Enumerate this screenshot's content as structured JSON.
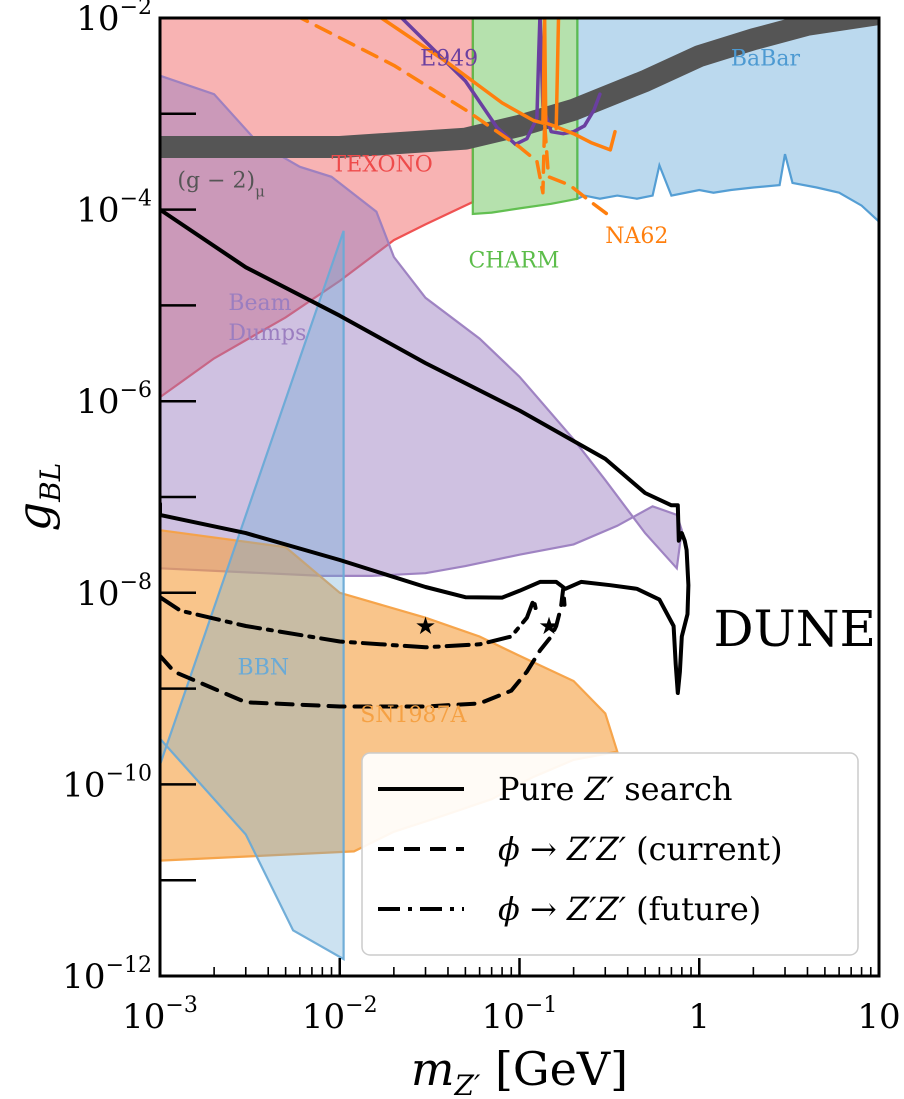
{
  "chart_data": {
    "type": "area",
    "x_scale": "log",
    "y_scale": "log",
    "xlim": [
      0.001,
      10
    ],
    "ylim": [
      1e-12,
      0.01
    ],
    "xlabel": {
      "main": "m",
      "sub": "Z′",
      "unit": "[GeV]"
    },
    "ylabel": {
      "main": "g",
      "sub": "BL"
    },
    "x_ticks": [
      {
        "value": 0.001,
        "base": "10",
        "exp": "−3"
      },
      {
        "value": 0.01,
        "base": "10",
        "exp": "−2"
      },
      {
        "value": 0.1,
        "base": "10",
        "exp": "−1"
      },
      {
        "value": 1,
        "base": "1",
        "exp": ""
      },
      {
        "value": 10,
        "base": "10",
        "exp": ""
      }
    ],
    "y_ticks": [
      {
        "value": 0.01,
        "base": "10",
        "exp": "−2"
      },
      {
        "value": 0.0001,
        "base": "10",
        "exp": "−4"
      },
      {
        "value": 1e-06,
        "base": "10",
        "exp": "−6"
      },
      {
        "value": 1e-08,
        "base": "10",
        "exp": "−8"
      },
      {
        "value": 1e-10,
        "base": "10",
        "exp": "−10"
      },
      {
        "value": 1e-12,
        "base": "10",
        "exp": "−12"
      }
    ],
    "regions": [
      {
        "name": "TEXONO",
        "color": "#ee4b4b",
        "alpha": 0.42,
        "label": {
          "text": "TEXONO",
          "x": 0.009,
          "y": 0.00025
        },
        "points": [
          [
            0.001,
            0.01
          ],
          [
            0.055,
            0.01
          ],
          [
            0.055,
            0.00012
          ],
          [
            0.03,
            7e-05
          ],
          [
            0.02,
            4.8e-05
          ],
          [
            0.01,
            1.8e-05
          ],
          [
            0.005,
            7.5e-06
          ],
          [
            0.002,
            2.8e-06
          ],
          [
            0.001,
            1.1e-06
          ]
        ]
      },
      {
        "name": "BaBar",
        "color": "#4d9ad2",
        "alpha": 0.38,
        "label": {
          "text": "BaBar",
          "x": 1.5,
          "y": 0.0032
        },
        "points": [
          [
            0.21,
            0.01
          ],
          [
            10,
            0.01
          ],
          [
            10,
            7.5e-05
          ],
          [
            8,
            0.00011
          ],
          [
            6,
            0.00015
          ],
          [
            4.5,
            0.00017
          ],
          [
            3.3,
            0.00019
          ],
          [
            3,
            0.00038
          ],
          [
            2.8,
            0.00018
          ],
          [
            2,
            0.00017
          ],
          [
            1.5,
            0.00016
          ],
          [
            1.2,
            0.00015
          ],
          [
            1,
            0.00016
          ],
          [
            0.7,
            0.00014
          ],
          [
            0.6,
            0.00029
          ],
          [
            0.55,
            0.00014
          ],
          [
            0.45,
            0.00013
          ],
          [
            0.35,
            0.00014
          ],
          [
            0.28,
            0.00013
          ],
          [
            0.23,
            0.00014
          ],
          [
            0.21,
            0.00013
          ]
        ]
      },
      {
        "name": "CHARM",
        "color": "#5cbd4a",
        "alpha": 0.45,
        "label": {
          "text": "CHARM",
          "x": 0.052,
          "y": 2.5e-05
        },
        "points": [
          [
            0.055,
            0.01
          ],
          [
            0.21,
            0.01
          ],
          [
            0.21,
            0.00013
          ],
          [
            0.19,
            0.000125
          ],
          [
            0.15,
            0.000115
          ],
          [
            0.1,
            0.000103
          ],
          [
            0.07,
            9.3e-05
          ],
          [
            0.055,
            9e-05
          ]
        ]
      },
      {
        "name": "Beam Dumps",
        "color": "#9b7ec0",
        "alpha": 0.48,
        "label": {
          "text": "Beam",
          "text2": "Dumps",
          "x": 0.0024,
          "y": 9e-06
        },
        "points": [
          [
            0.001,
            0.0025
          ],
          [
            0.002,
            0.0016
          ],
          [
            0.0035,
            0.0005
          ],
          [
            0.006,
            0.00028
          ],
          [
            0.009,
            0.00022
          ],
          [
            0.016,
            9.5e-05
          ],
          [
            0.02,
            3.2e-05
          ],
          [
            0.03,
            1.2e-05
          ],
          [
            0.06,
            4.5e-06
          ],
          [
            0.1,
            1.8e-06
          ],
          [
            0.2,
            4e-07
          ],
          [
            0.3,
            1.5e-07
          ],
          [
            0.5,
            4.2e-08
          ],
          [
            0.75,
            1.8e-08
          ],
          [
            0.8,
            4.5e-08
          ],
          [
            0.75,
            6.5e-08
          ],
          [
            0.55,
            8e-08
          ],
          [
            0.35,
            5e-08
          ],
          [
            0.2,
            3.2e-08
          ],
          [
            0.1,
            2.5e-08
          ],
          [
            0.05,
            1.9e-08
          ],
          [
            0.03,
            1.6e-08
          ],
          [
            0.015,
            1.5e-08
          ],
          [
            0.008,
            1.5e-08
          ],
          [
            0.001,
            1.8e-08
          ]
        ]
      },
      {
        "name": "SN1987A",
        "color": "#f5a144",
        "alpha": 0.62,
        "label": {
          "text": "SN1987A",
          "x": 0.013,
          "y": 4.5e-10
        },
        "points": [
          [
            0.001,
            4.5e-08
          ],
          [
            0.005,
            3e-08
          ],
          [
            0.01,
            1e-08
          ],
          [
            0.03,
            5.5e-09
          ],
          [
            0.06,
            3.5e-09
          ],
          [
            0.1,
            2.2e-09
          ],
          [
            0.2,
            1.2e-09
          ],
          [
            0.3,
            5.5e-10
          ],
          [
            0.35,
            2.2e-10
          ],
          [
            0.2,
            1.8e-10
          ],
          [
            0.12,
            1.2e-10
          ],
          [
            0.07,
            7e-11
          ],
          [
            0.035,
            4.5e-11
          ],
          [
            0.02,
            3.2e-11
          ],
          [
            0.012,
            2e-11
          ],
          [
            0.001,
            1.6e-11
          ]
        ]
      },
      {
        "name": "BBN",
        "color": "#6aaad6",
        "alpha": 0.34,
        "label": {
          "text": "BBN",
          "x": 0.0027,
          "y": 1.4e-09
        },
        "points": [
          [
            0.001,
            1.6e-10
          ],
          [
            0.001,
            3e-10
          ],
          [
            0.003,
            3e-11
          ],
          [
            0.0055,
            3e-12
          ],
          [
            0.0105,
            1.5e-12
          ],
          [
            0.0105,
            6e-05
          ]
        ]
      }
    ],
    "lines": [
      {
        "name": "(g − 2)_μ",
        "color": "#555555",
        "style": "band",
        "label": {
          "text": "(g − 2)",
          "sub": "μ",
          "x": 0.00125,
          "y": 0.00017
        },
        "points": [
          [
            0.001,
            0.00045
          ],
          [
            0.01,
            0.00045
          ],
          [
            0.05,
            0.00055
          ],
          [
            0.1,
            0.00075
          ],
          [
            0.2,
            0.0011
          ],
          [
            0.5,
            0.0022
          ],
          [
            1,
            0.004
          ],
          [
            2,
            0.006
          ],
          [
            4,
            0.0085
          ],
          [
            10,
            0.011
          ]
        ]
      },
      {
        "name": "E949",
        "color": "#6a3fa0",
        "style": "solid",
        "label": {
          "text": "E949",
          "x": 0.028,
          "y": 0.0032
        },
        "points": [
          [
            0.021,
            0.011
          ],
          [
            0.05,
            0.0022
          ],
          [
            0.075,
            0.00072
          ],
          [
            0.095,
            0.00048
          ],
          [
            0.11,
            0.00055
          ],
          [
            0.125,
            0.0009
          ],
          [
            0.128,
            0.0045
          ],
          [
            0.13,
            0.011
          ],
          [
            0.132,
            0.0045
          ],
          [
            0.135,
            0.0012
          ],
          [
            0.15,
            0.00065
          ],
          [
            0.175,
            0.00062
          ],
          [
            0.2,
            0.00065
          ],
          [
            0.23,
            0.00075
          ],
          [
            0.26,
            0.0011
          ],
          [
            0.28,
            0.0016
          ]
        ]
      },
      {
        "name": "NA62",
        "color": "#ff7f0e",
        "style": "solid",
        "label": {
          "text": "NA62",
          "x": 0.3,
          "y": 4.5e-05
        },
        "points": [
          [
            0.0158,
            0.011
          ],
          [
            0.04,
            0.0034
          ],
          [
            0.08,
            0.0013
          ],
          [
            0.12,
            0.00085
          ],
          [
            0.135,
            0.0008
          ],
          [
            0.138,
            0.011
          ],
          [
            0.14,
            0.0008
          ],
          [
            0.155,
            0.00075
          ],
          [
            0.2,
            0.00062
          ],
          [
            0.25,
            0.0005
          ],
          [
            0.32,
            0.00042
          ],
          [
            0.34,
            0.00065
          ]
        ]
      },
      {
        "name": "NA62",
        "color": "#ff7f0e",
        "style": "solid",
        "points": [
          [
            0.16,
            0.0007
          ],
          [
            0.165,
            0.011
          ]
        ]
      },
      {
        "name": "NA62",
        "color": "#ff7f0e",
        "style": "dashed",
        "points": [
          [
            0.0055,
            0.011
          ],
          [
            0.02,
            0.0032
          ],
          [
            0.05,
            0.0011
          ],
          [
            0.1,
            0.00045
          ],
          [
            0.125,
            0.00032
          ],
          [
            0.135,
            0.00015
          ],
          [
            0.138,
            0.0008
          ],
          [
            0.145,
            0.00022
          ],
          [
            0.19,
            0.00018
          ],
          [
            0.25,
            0.00012
          ],
          [
            0.32,
            8.5e-05
          ]
        ]
      },
      {
        "name": "Pure Z′ search",
        "color": "#000000",
        "style": "solid",
        "points": [
          [
            0.001,
            0.0001
          ],
          [
            0.003,
            2.5e-05
          ],
          [
            0.01,
            7.8e-06
          ],
          [
            0.03,
            2.5e-06
          ],
          [
            0.1,
            8e-07
          ],
          [
            0.3,
            2.5e-07
          ],
          [
            0.5,
            1.1e-07
          ],
          [
            0.7,
            8.2e-08
          ],
          [
            0.76,
            8.2e-08
          ],
          [
            0.77,
            3.5e-08
          ],
          [
            0.8,
            4.2e-08
          ],
          [
            0.83,
            3.5e-08
          ],
          [
            0.85,
            2.8e-08
          ],
          [
            0.87,
            1.2e-08
          ],
          [
            0.86,
            6e-09
          ],
          [
            0.8,
            3.5e-09
          ],
          [
            0.78,
            1.5e-09
          ],
          [
            0.76,
            9e-10
          ],
          [
            0.74,
            1.8e-09
          ],
          [
            0.72,
            4.5e-09
          ],
          [
            0.6,
            8.5e-09
          ],
          [
            0.45,
            1.1e-08
          ],
          [
            0.32,
            1.2e-08
          ],
          [
            0.22,
            1.3e-08
          ],
          [
            0.18,
            1.1e-08
          ],
          [
            0.16,
            1.3e-08
          ],
          [
            0.13,
            1.3e-08
          ],
          [
            0.1,
            1.05e-08
          ],
          [
            0.08,
            8.9e-09
          ],
          [
            0.05,
            9e-09
          ],
          [
            0.03,
            1.15e-08
          ],
          [
            0.01,
            2.2e-08
          ],
          [
            0.003,
            4.2e-08
          ],
          [
            0.001,
            6.5e-08
          ],
          [
            0.001,
            8.5e-08
          ]
        ]
      },
      {
        "name": "ϕ → Z′Z′ (current)",
        "color": "#000000",
        "style": "dashed",
        "points": [
          [
            0.001,
            2.2e-09
          ],
          [
            0.0012,
            1.5e-09
          ],
          [
            0.003,
            7.2e-10
          ],
          [
            0.01,
            6.5e-10
          ],
          [
            0.03,
            6.5e-10
          ],
          [
            0.06,
            7e-10
          ],
          [
            0.09,
            9.5e-10
          ],
          [
            0.11,
            1.5e-09
          ],
          [
            0.13,
            2.5e-09
          ],
          [
            0.15,
            3.5e-09
          ],
          [
            0.16,
            4.5e-09
          ],
          [
            0.17,
            7e-09
          ],
          [
            0.175,
            1.1e-08
          ],
          [
            0.178,
            7.5e-09
          ]
        ]
      },
      {
        "name": "ϕ → Z′Z′ (future)",
        "color": "#000000",
        "style": "dashdot",
        "points": [
          [
            0.001,
            9e-09
          ],
          [
            0.0013,
            6.5e-09
          ],
          [
            0.003,
            4.5e-09
          ],
          [
            0.01,
            3.1e-09
          ],
          [
            0.03,
            2.7e-09
          ],
          [
            0.06,
            2.9e-09
          ],
          [
            0.09,
            3.5e-09
          ],
          [
            0.11,
            5.5e-09
          ],
          [
            0.12,
            8.5e-09
          ],
          [
            0.125,
            6e-09
          ]
        ]
      }
    ],
    "markers": [
      {
        "symbol": "★",
        "x": 0.03,
        "y": 4.5e-09
      },
      {
        "symbol": "★",
        "x": 0.146,
        "y": 4.5e-09
      }
    ],
    "annotations": [
      {
        "text": "DUNE",
        "x": 1.2,
        "y": 4.5e-09
      }
    ],
    "legend": {
      "position": "bottom-right",
      "entries": [
        {
          "style": "solid",
          "text": "Pure",
          "math": "Z′",
          "tail": "search"
        },
        {
          "style": "dashed",
          "text": "",
          "math": "ϕ → Z′Z′",
          "tail": "(current)"
        },
        {
          "style": "dashdot",
          "text": "",
          "math": "ϕ → Z′Z′",
          "tail": "(future)"
        }
      ]
    }
  }
}
